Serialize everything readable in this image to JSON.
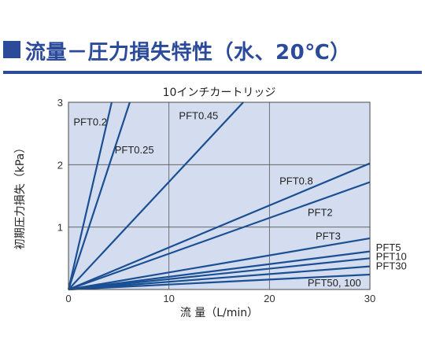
{
  "page_title": "流量－圧力損失特性（水、20℃）",
  "colors": {
    "brand": "#2b4a9a",
    "plot_bg": "#d4ddef",
    "line": "#1a4f93"
  },
  "chart_data": {
    "type": "line",
    "title": "10インチカートリッジ",
    "xlabel": "流 量（L/min）",
    "ylabel": "初期圧力損失（kPa）",
    "xlim": [
      0,
      30
    ],
    "ylim": [
      0,
      3
    ],
    "xticks": [
      0,
      10,
      20,
      30
    ],
    "yticks": [
      1,
      2,
      3
    ],
    "grid": true,
    "series": [
      {
        "name": "PFT0.2",
        "x": [
          0,
          4.3
        ],
        "y": [
          0,
          3
        ]
      },
      {
        "name": "PFT0.25",
        "x": [
          0,
          6.1
        ],
        "y": [
          0,
          3
        ]
      },
      {
        "name": "PFT0.45",
        "x": [
          0,
          17.4
        ],
        "y": [
          0,
          3
        ]
      },
      {
        "name": "PFT0.8",
        "x": [
          0,
          30
        ],
        "y": [
          0,
          2.02
        ]
      },
      {
        "name": "PFT2",
        "x": [
          0,
          30
        ],
        "y": [
          0,
          1.72
        ]
      },
      {
        "name": "PFT3",
        "x": [
          0,
          30
        ],
        "y": [
          0,
          0.82
        ]
      },
      {
        "name": "PFT5",
        "x": [
          0,
          30
        ],
        "y": [
          0,
          0.61
        ]
      },
      {
        "name": "PFT10",
        "x": [
          0,
          30
        ],
        "y": [
          0,
          0.5
        ]
      },
      {
        "name": "PFT30",
        "x": [
          0,
          30
        ],
        "y": [
          0,
          0.37
        ]
      },
      {
        "name": "PFT50, 100",
        "x": [
          0,
          30
        ],
        "y": [
          0,
          0.24
        ]
      }
    ]
  }
}
